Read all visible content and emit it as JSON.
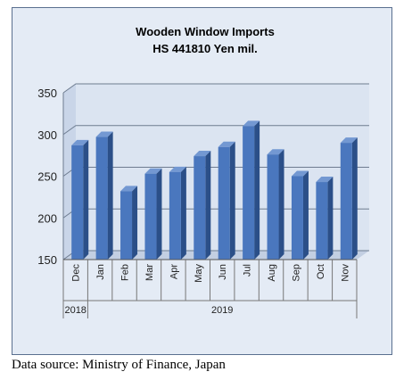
{
  "chart_data": {
    "type": "bar",
    "title": "Wooden Window Imports",
    "subtitle": "HS 441810 Yen mil.",
    "categories": [
      "Dec",
      "Jan",
      "Feb",
      "Mar",
      "Apr",
      "May",
      "Jun",
      "Jul",
      "Aug",
      "Sep",
      "Oct",
      "Nov"
    ],
    "year_groups": [
      {
        "label": "2018",
        "count": 1
      },
      {
        "label": "2019",
        "count": 11
      }
    ],
    "values": [
      287,
      297,
      232,
      253,
      255,
      274,
      285,
      310,
      276,
      250,
      243,
      290
    ],
    "ylim": [
      150,
      350
    ],
    "yticks": [
      150,
      200,
      250,
      300,
      350
    ],
    "grid": true,
    "colors": {
      "bar_front": "#4a77be",
      "bar_side": "#2b4f88",
      "bar_top": "#7398d2",
      "plot_bg": "#dbe4f1",
      "frame_bg": "#e4ebf5",
      "grid": "#6e7c90"
    }
  },
  "source_note": "Data source: Ministry of Finance, Japan"
}
